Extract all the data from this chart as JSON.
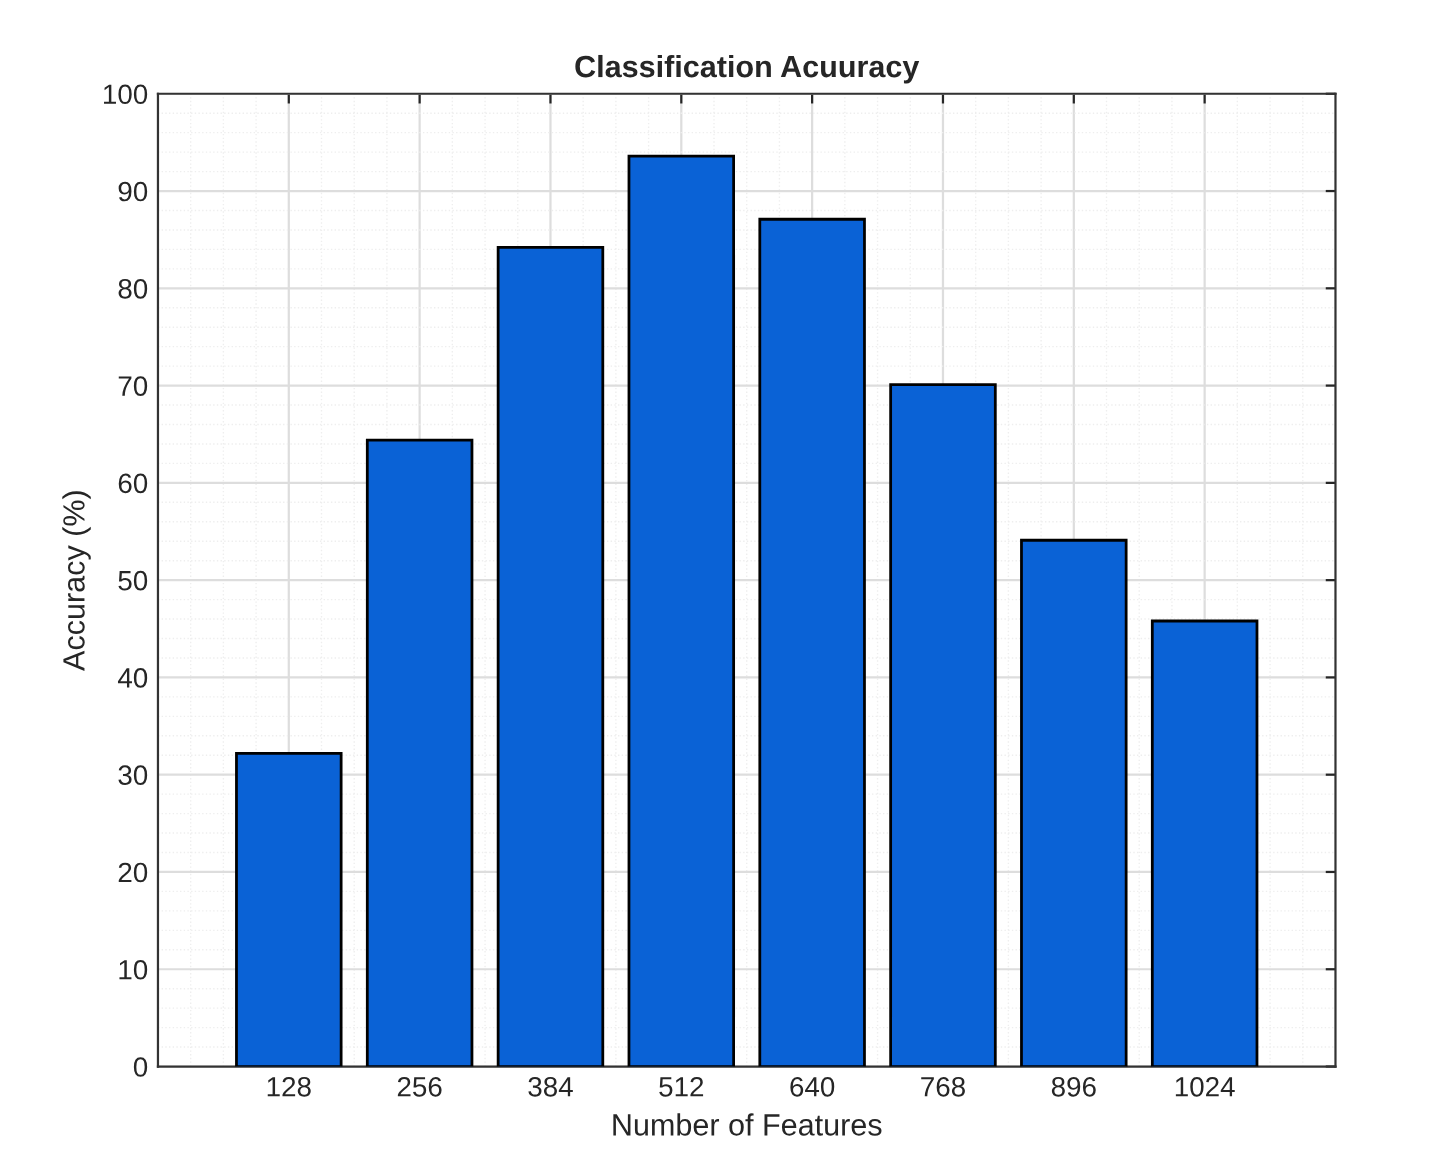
{
  "chart_data": {
    "type": "bar",
    "title": "Classification Acuuracy",
    "xlabel": "Number of Features",
    "ylabel": "Accuracy (%)",
    "categories": [
      "128",
      "256",
      "384",
      "512",
      "640",
      "768",
      "896",
      "1024"
    ],
    "values": [
      32.2,
      64.4,
      84.2,
      93.6,
      87.1,
      70.1,
      54.1,
      45.8
    ],
    "color": "#0a62d6",
    "ylim": [
      0,
      100
    ],
    "yticks": [
      0,
      10,
      20,
      30,
      40,
      50,
      60,
      70,
      80,
      90,
      100
    ],
    "grid": true
  }
}
